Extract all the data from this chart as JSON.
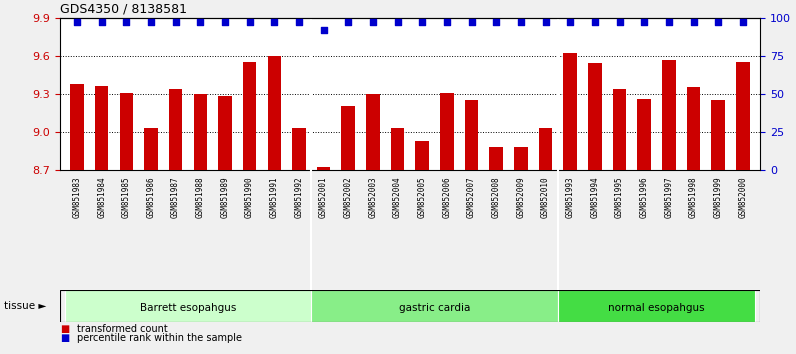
{
  "title": "GDS4350 / 8138581",
  "samples": [
    "GSM851983",
    "GSM851984",
    "GSM851985",
    "GSM851986",
    "GSM851987",
    "GSM851988",
    "GSM851989",
    "GSM851990",
    "GSM851991",
    "GSM851992",
    "GSM852001",
    "GSM852002",
    "GSM852003",
    "GSM852004",
    "GSM852005",
    "GSM852006",
    "GSM852007",
    "GSM852008",
    "GSM852009",
    "GSM852010",
    "GSM851993",
    "GSM851994",
    "GSM851995",
    "GSM851996",
    "GSM851997",
    "GSM851998",
    "GSM851999",
    "GSM852000"
  ],
  "bar_values": [
    9.38,
    9.36,
    9.31,
    9.03,
    9.34,
    9.3,
    9.28,
    9.55,
    9.6,
    9.03,
    8.72,
    9.2,
    9.3,
    9.03,
    8.93,
    9.31,
    9.25,
    8.88,
    8.88,
    9.03,
    9.62,
    9.54,
    9.34,
    9.26,
    9.57,
    9.35,
    9.25,
    9.55
  ],
  "percentile_values": [
    97,
    97,
    97,
    97,
    97,
    97,
    97,
    97,
    97,
    97,
    92,
    97,
    97,
    97,
    97,
    97,
    97,
    97,
    97,
    97,
    97,
    97,
    97,
    97,
    97,
    97,
    97,
    97
  ],
  "groups": [
    {
      "label": "Barrett esopahgus",
      "start": 0,
      "end": 10,
      "color": "#ccffcc"
    },
    {
      "label": "gastric cardia",
      "start": 10,
      "end": 20,
      "color": "#88ee88"
    },
    {
      "label": "normal esopahgus",
      "start": 20,
      "end": 28,
      "color": "#44dd44"
    }
  ],
  "ylim_left": [
    8.7,
    9.9
  ],
  "ylim_right": [
    0,
    100
  ],
  "yticks_left": [
    8.7,
    9.0,
    9.3,
    9.6,
    9.9
  ],
  "yticks_right": [
    0,
    25,
    50,
    75,
    100
  ],
  "bar_color": "#cc0000",
  "dot_color": "#0000cc",
  "bg_color": "#f0f0f0",
  "plot_bg": "#ffffff",
  "tick_bg": "#d8d8d8",
  "legend_items": [
    "transformed count",
    "percentile rank within the sample"
  ],
  "legend_colors": [
    "#cc0000",
    "#0000cc"
  ],
  "tissue_label": "tissue"
}
